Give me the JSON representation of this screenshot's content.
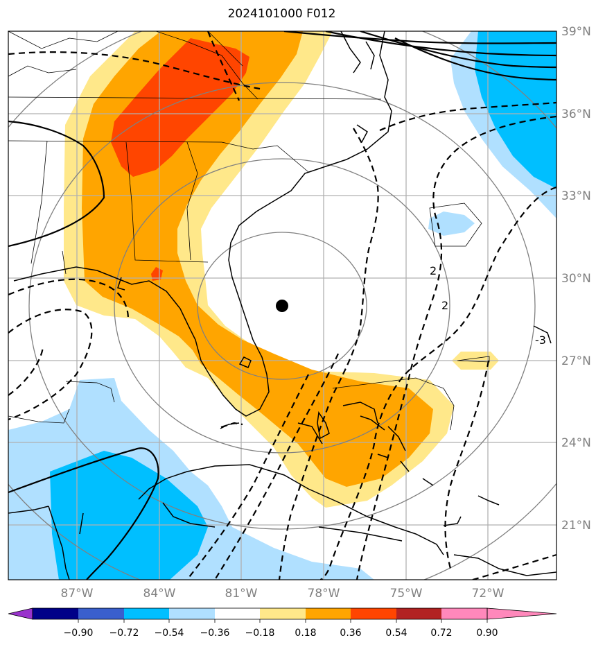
{
  "title": "2024101000 F012",
  "map": {
    "extent": {
      "lon": [
        -89.5,
        -69.5
      ],
      "lat": [
        19.0,
        39.0
      ]
    },
    "lat_labels": [
      "21°N",
      "24°N",
      "27°N",
      "30°N",
      "33°N",
      "36°N",
      "39°N"
    ],
    "lon_labels": [
      "87°W",
      "84°W",
      "81°W",
      "78°W",
      "75°W",
      "72°W"
    ],
    "storm_center": {
      "lon": -79.5,
      "lat": 29.0
    },
    "contour_labels": [
      "2",
      "2",
      "-3"
    ]
  },
  "colorbar": {
    "ticks": [
      "−0.90",
      "−0.72",
      "−0.54",
      "−0.36",
      "−0.18",
      "0.18",
      "0.36",
      "0.54",
      "0.72",
      "0.90"
    ],
    "colors": [
      "#9933cc",
      "#000088",
      "#3a5fcd",
      "#00bfff",
      "#b0e0ff",
      "#ffffff",
      "#ffe88a",
      "#ffa500",
      "#ff4500",
      "#b22222",
      "#ff88bb"
    ]
  },
  "colors": {
    "light_blue": "#b0e0ff",
    "blue": "#00bfff",
    "yellow": "#ffe88a",
    "orange": "#ffa500",
    "red": "#ff4500",
    "grid": "#b0b0b0",
    "ring": "#808080"
  }
}
